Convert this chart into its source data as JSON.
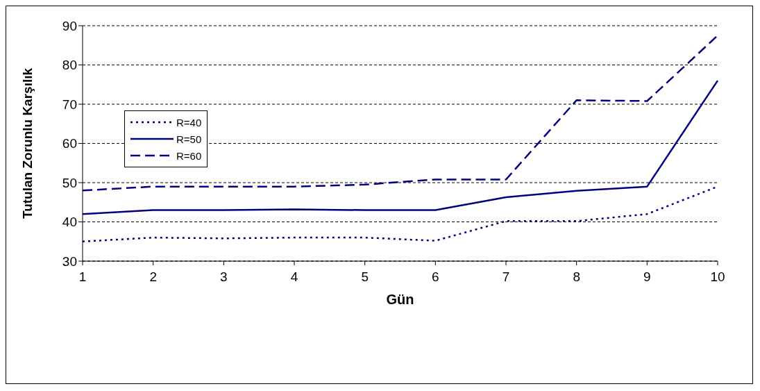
{
  "chart_data": {
    "type": "line",
    "xlabel": "Gün",
    "ylabel": "Tutulan Zorunlu Karşılık",
    "categories": [
      "1",
      "2",
      "3",
      "4",
      "5",
      "6",
      "7",
      "8",
      "9",
      "10"
    ],
    "series": [
      {
        "name": "R=40",
        "color": "#000080",
        "line_style": "dotted",
        "values": [
          35,
          36,
          35.8,
          36,
          36,
          35.2,
          40.2,
          40.2,
          42,
          49
        ]
      },
      {
        "name": "R=50",
        "color": "#000080",
        "line_style": "solid",
        "values": [
          42,
          43,
          43,
          43.2,
          43,
          43,
          46.3,
          47.9,
          49,
          76
        ]
      },
      {
        "name": "R=60",
        "color": "#000080",
        "line_style": "dashed",
        "values": [
          48,
          49,
          49,
          49,
          49.5,
          50.8,
          50.8,
          71,
          70.8,
          87.5
        ]
      }
    ],
    "ylim": [
      30,
      90
    ],
    "yticks": [
      30,
      40,
      50,
      60,
      70,
      80,
      90
    ],
    "grid": "y",
    "legend": "top left",
    "marker": "none"
  }
}
